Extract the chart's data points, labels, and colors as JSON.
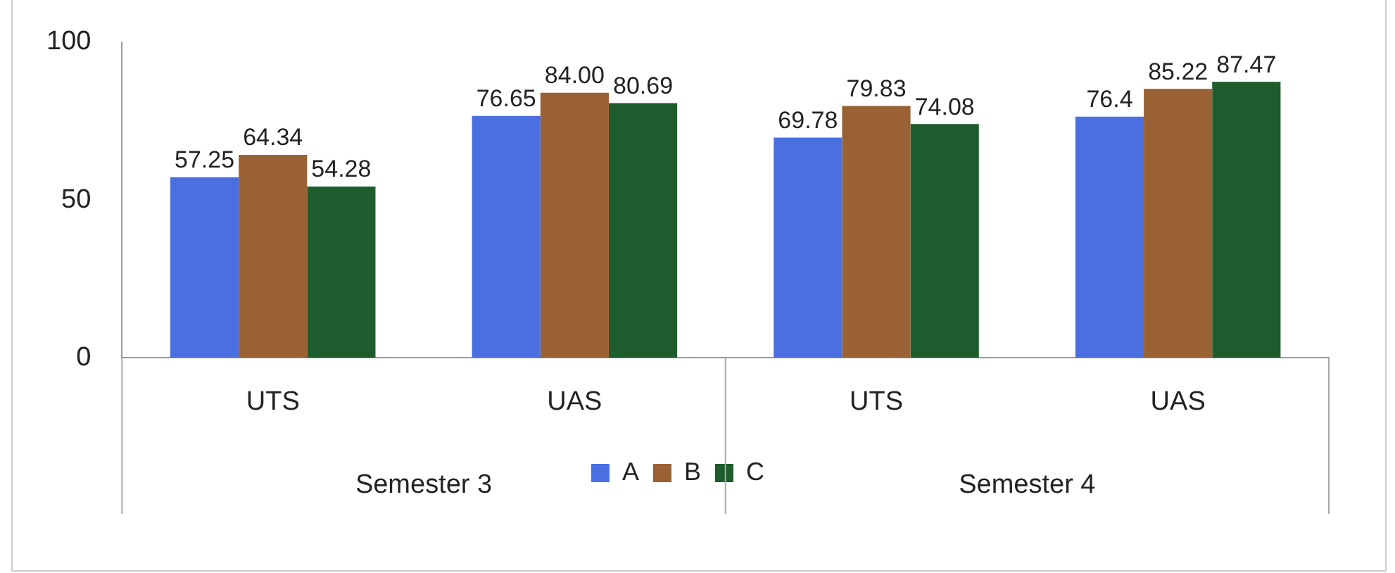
{
  "chart_data": {
    "type": "bar",
    "categories": [
      "UTS",
      "UAS",
      "UTS",
      "UAS"
    ],
    "series": [
      {
        "name": "A",
        "color": "#4a6fe0",
        "values": [
          57.25,
          76.65,
          69.78,
          76.4
        ],
        "value_labels": [
          "57.25",
          "76.65",
          "69.78",
          "76.4"
        ]
      },
      {
        "name": "B",
        "color": "#9a6234",
        "values": [
          64.34,
          84.0,
          79.83,
          85.22
        ],
        "value_labels": [
          "64.34",
          "84.00",
          "79.83",
          "85.22"
        ]
      },
      {
        "name": "C",
        "color": "#1d5c2c",
        "values": [
          54.28,
          80.69,
          74.08,
          87.47
        ],
        "value_labels": [
          "54.28",
          "80.69",
          "74.08",
          "87.47"
        ]
      }
    ],
    "ylim": [
      0,
      100
    ],
    "yticks": [
      0,
      50,
      100
    ],
    "grid": false,
    "legend": "bottom",
    "data_labels": true,
    "annotations": [
      "Semester 3",
      "Semester 4"
    ]
  }
}
